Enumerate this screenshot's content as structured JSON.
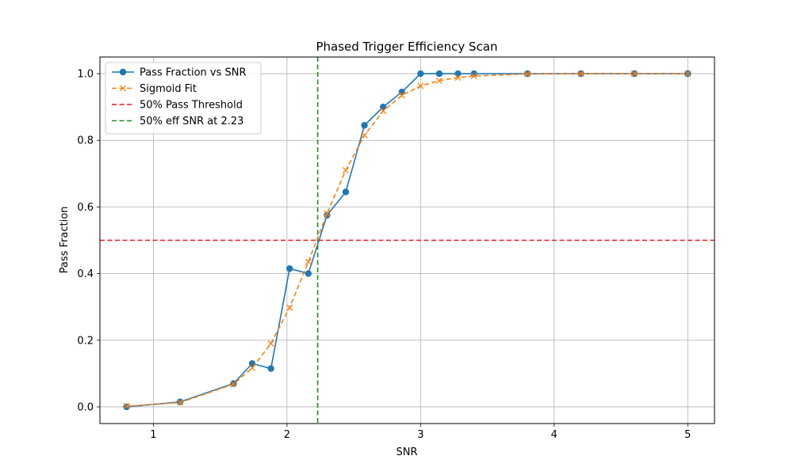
{
  "chart_data": {
    "type": "line",
    "title": "Phased Trigger Efficiency Scan",
    "xlabel": "SNR",
    "ylabel": "Pass Fraction",
    "xlim": [
      0.6,
      5.2
    ],
    "ylim": [
      -0.05,
      1.05
    ],
    "xticks": [
      1,
      2,
      3,
      4,
      5
    ],
    "xtick_labels": [
      "1",
      "2",
      "3",
      "4",
      "5"
    ],
    "yticks": [
      0.0,
      0.2,
      0.4,
      0.6,
      0.8,
      1.0
    ],
    "ytick_labels": [
      "0.0",
      "0.2",
      "0.4",
      "0.6",
      "0.8",
      "1.0"
    ],
    "grid": true,
    "legend_position": "upper-left",
    "series": [
      {
        "name": "Pass Fraction vs SNR",
        "style": "solid",
        "marker": "circle",
        "color": "#1f77b4",
        "x": [
          0.8,
          1.2,
          1.6,
          1.74,
          1.88,
          2.02,
          2.16,
          2.3,
          2.44,
          2.58,
          2.72,
          2.86,
          3.0,
          3.14,
          3.28,
          3.4,
          3.8,
          4.2,
          4.6,
          5.0
        ],
        "y": [
          0.0,
          0.015,
          0.07,
          0.13,
          0.115,
          0.415,
          0.4,
          0.575,
          0.645,
          0.845,
          0.9,
          0.945,
          1.0,
          1.0,
          1.0,
          1.0,
          1.0,
          1.0,
          1.0,
          1.0
        ]
      },
      {
        "name": "Sigmoid Fit",
        "style": "dashed",
        "marker": "x",
        "color": "#ff7f0e",
        "x": [
          0.8,
          1.2,
          1.6,
          1.74,
          1.88,
          2.02,
          2.16,
          2.3,
          2.44,
          2.58,
          2.72,
          2.86,
          3.0,
          3.14,
          3.28,
          3.4,
          3.8,
          4.2,
          4.6,
          5.0
        ],
        "y": [
          0.002,
          0.013,
          0.068,
          0.117,
          0.19,
          0.298,
          0.435,
          0.58,
          0.71,
          0.815,
          0.888,
          0.935,
          0.963,
          0.979,
          0.988,
          0.993,
          0.999,
          1.0,
          1.0,
          1.0
        ]
      }
    ],
    "reference_lines": [
      {
        "name": "50% Pass Threshold",
        "orientation": "horizontal",
        "value": 0.5,
        "style": "dashed",
        "color": "#e31a1c"
      },
      {
        "name": "50% eff SNR at 2.23",
        "orientation": "vertical",
        "value": 2.23,
        "style": "dashed",
        "color": "#228b22"
      }
    ]
  }
}
